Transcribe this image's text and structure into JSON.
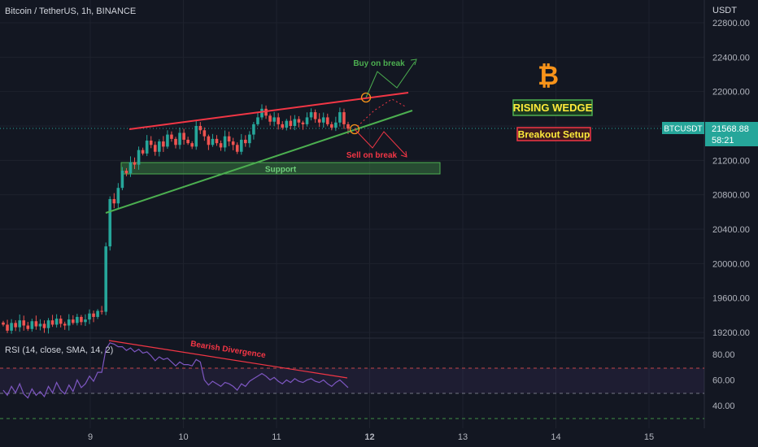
{
  "header": {
    "symbol_line": "Bitcoin / TetherUS, 1h, BINANCE",
    "currency": "USDT"
  },
  "price_tag": {
    "ticker": "BTCUSDT",
    "price": "21568.88",
    "countdown": "58:21",
    "color": "#26a69a"
  },
  "annotations": {
    "buy": "Buy on break",
    "sell": "Sell on break",
    "support": "Support",
    "pattern": "RISING WEDGE",
    "setup": "Breakout Setup",
    "divergence": "Bearish Divergence",
    "bitcoin_icon": "bitcoin-icon"
  },
  "rsi": {
    "label": "RSI (14, close, SMA, 14, 2)",
    "upper_band": 70,
    "lower_band": 30
  },
  "colors": {
    "up": "#26a69a",
    "down": "#ef5350",
    "resistance": "#f23645",
    "support_line": "#4caf50",
    "rsi_line": "#7e57c2",
    "bitcoin": "#f7931a"
  },
  "chart_data": {
    "type": "candlestick",
    "price_axis": {
      "ticks": [
        22800,
        22400,
        22000,
        21600,
        21200,
        20800,
        20400,
        20000,
        19600,
        19200
      ],
      "tick_labels": [
        "22800.00",
        "22400.00",
        "22000.00",
        "21600.00",
        "21200.00",
        "20800.00",
        "20400.00",
        "20000.00",
        "19600.00",
        "19200.00"
      ],
      "range": [
        19180,
        22850
      ]
    },
    "rsi_axis": {
      "ticks": [
        80,
        60,
        40
      ],
      "tick_labels": [
        "80.00",
        "60.00",
        "40.00"
      ],
      "range": [
        18,
        92
      ]
    },
    "time_axis": {
      "days": [
        9,
        10,
        11,
        12,
        13,
        14,
        15
      ],
      "labels": [
        "9",
        "10",
        "11",
        "12",
        "13",
        "14",
        "15"
      ]
    },
    "candles_hourly_close": [
      19290,
      19220,
      19310,
      19260,
      19340,
      19280,
      19240,
      19330,
      19270,
      19300,
      19250,
      19340,
      19290,
      19360,
      19300,
      19280,
      19350,
      19310,
      19380,
      19320,
      19350,
      19420,
      19380,
      19450,
      19440,
      20200,
      20750,
      20700,
      20880,
      21080,
      21050,
      21180,
      21150,
      21320,
      21280,
      21430,
      21380,
      21300,
      21420,
      21360,
      21500,
      21450,
      21380,
      21520,
      21440,
      21400,
      21360,
      21600,
      21550,
      21480,
      21380,
      21450,
      21400,
      21350,
      21480,
      21420,
      21380,
      21300,
      21440,
      21400,
      21500,
      21620,
      21700,
      21800,
      21720,
      21650,
      21700,
      21620,
      21580,
      21660,
      21600,
      21680,
      21640,
      21620,
      21700,
      21760,
      21680,
      21640,
      21700,
      21620,
      21580,
      21640,
      21760,
      21620,
      21569
    ],
    "rsi_values": [
      52,
      48,
      55,
      50,
      57,
      49,
      46,
      53,
      48,
      51,
      47,
      55,
      50,
      58,
      52,
      49,
      56,
      51,
      60,
      54,
      57,
      63,
      59,
      66,
      66,
      84,
      89,
      88,
      86,
      86,
      83,
      85,
      82,
      84,
      81,
      82,
      79,
      75,
      78,
      76,
      77,
      74,
      71,
      74,
      72,
      72,
      71,
      76,
      74,
      60,
      56,
      59,
      57,
      55,
      58,
      57,
      55,
      52,
      57,
      55,
      59,
      61,
      63,
      65,
      63,
      60,
      62,
      59,
      57,
      60,
      58,
      61,
      59,
      58,
      60,
      61,
      59,
      58,
      60,
      57,
      55,
      58,
      60,
      57,
      54
    ],
    "current_price": 21568.88
  }
}
